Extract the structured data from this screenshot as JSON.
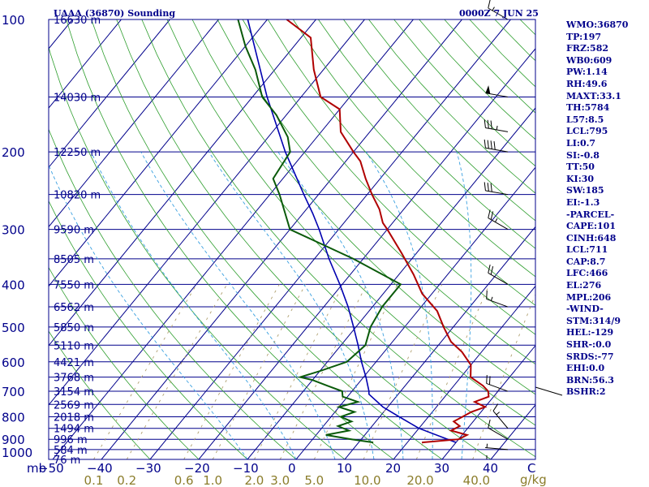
{
  "header": {
    "station": "UAAA (36870) Sounding",
    "time": "0000Z  7 JUN 25"
  },
  "axis": {
    "mb_label": "mb",
    "mixing_unit": "g/kg"
  },
  "stats": [
    "WMO:36870",
    "TP:197",
    "FRZ:582",
    "WB0:609",
    "PW:1.14",
    "RH:49.6",
    "MAXT:33.1",
    "TH:5784",
    "L57:8.5",
    "LCL:795",
    "LI:0.7",
    "SI:-0.8",
    "TT:50",
    "KI:30",
    "SW:185",
    "EI:-1.3",
    "-PARCEL-",
    "CAPE:101",
    "CINH:648",
    "LCL:711",
    "CAP:8.7",
    "LFC:466",
    "EL:276",
    "MPL:206",
    "-WIND-",
    "STM:314/9",
    "HEL:-129",
    "SHR-:0.0",
    "SRDS:-77",
    "EHI:0.0",
    "BRN:56.3",
    "BSHR:2"
  ],
  "colors": {
    "isobar": "#00008b",
    "isotherm": "#00008b",
    "dry_adiabat": "#2e9e2e",
    "moist_adiabat": "#3aa0e0",
    "mixing_ratio": "#b0a070",
    "temperature": "#b00000",
    "dewpoint": "#0a5a0a",
    "parcel": "#0000b0",
    "wind_barb": "#000000"
  },
  "chart_data": {
    "type": "skew-t",
    "pressure_ticks": [
      100,
      200,
      300,
      400,
      500,
      600,
      700,
      800,
      900,
      1000
    ],
    "temperature_ticks": [
      -50,
      -40,
      -30,
      -20,
      -10,
      0,
      10,
      20,
      30,
      40,
      "C"
    ],
    "mixing_ratio_ticks": [
      "0.1",
      "0.2",
      "0.6",
      "1.0",
      "2.0",
      "3.0",
      "5.0",
      "10.0",
      "20.0",
      "40.0"
    ],
    "height_labels": [
      {
        "p": 100,
        "label": "16630 m"
      },
      {
        "p": 150,
        "label": "14030 m"
      },
      {
        "p": 200,
        "label": "12250 m"
      },
      {
        "p": 250,
        "label": "10820 m"
      },
      {
        "p": 300,
        "label": "9590 m"
      },
      {
        "p": 350,
        "label": "8505 m"
      },
      {
        "p": 400,
        "label": "7550 m"
      },
      {
        "p": 450,
        "label": "6562 m"
      },
      {
        "p": 500,
        "label": "5850 m"
      },
      {
        "p": 550,
        "label": "5110 m"
      },
      {
        "p": 600,
        "label": "4421 m"
      },
      {
        "p": 650,
        "label": "3768 m"
      },
      {
        "p": 700,
        "label": "3154 m"
      },
      {
        "p": 750,
        "label": "2569 m"
      },
      {
        "p": 800,
        "label": "2018 m"
      },
      {
        "p": 850,
        "label": "1494 m"
      },
      {
        "p": 900,
        "label": "996 m"
      },
      {
        "p": 950,
        "label": "584 m"
      },
      {
        "p": 1000,
        "label": "76 m"
      }
    ],
    "temperature_profile": [
      [
        915,
        23
      ],
      [
        900,
        30
      ],
      [
        880,
        31
      ],
      [
        860,
        27
      ],
      [
        840,
        28
      ],
      [
        820,
        26
      ],
      [
        800,
        27
      ],
      [
        780,
        28
      ],
      [
        760,
        30
      ],
      [
        740,
        27
      ],
      [
        720,
        29
      ],
      [
        700,
        28
      ],
      [
        680,
        26
      ],
      [
        650,
        22
      ],
      [
        610,
        20
      ],
      [
        570,
        16
      ],
      [
        540,
        12
      ],
      [
        500,
        8
      ],
      [
        460,
        4
      ],
      [
        420,
        -2
      ],
      [
        380,
        -7
      ],
      [
        340,
        -13
      ],
      [
        300,
        -20
      ],
      [
        290,
        -22
      ],
      [
        270,
        -25
      ],
      [
        250,
        -29
      ],
      [
        230,
        -33
      ],
      [
        210,
        -37
      ],
      [
        200,
        -40
      ],
      [
        180,
        -46
      ],
      [
        160,
        -50
      ],
      [
        150,
        -56
      ],
      [
        130,
        -62
      ],
      [
        110,
        -68
      ],
      [
        100,
        -76
      ]
    ],
    "dewpoint_profile": [
      [
        915,
        13
      ],
      [
        900,
        8
      ],
      [
        880,
        2
      ],
      [
        860,
        6
      ],
      [
        840,
        3
      ],
      [
        820,
        5
      ],
      [
        800,
        2
      ],
      [
        780,
        4
      ],
      [
        760,
        0
      ],
      [
        740,
        3
      ],
      [
        720,
        -1
      ],
      [
        700,
        -2
      ],
      [
        680,
        -6
      ],
      [
        660,
        -10
      ],
      [
        650,
        -13
      ],
      [
        630,
        -10
      ],
      [
        600,
        -6
      ],
      [
        550,
        -5
      ],
      [
        500,
        -7
      ],
      [
        450,
        -8
      ],
      [
        400,
        -8
      ],
      [
        350,
        -22
      ],
      [
        300,
        -40
      ],
      [
        250,
        -48
      ],
      [
        230,
        -52
      ],
      [
        200,
        -53
      ],
      [
        185,
        -56
      ],
      [
        165,
        -62
      ],
      [
        150,
        -68
      ],
      [
        130,
        -74
      ],
      [
        115,
        -80
      ],
      [
        100,
        -86
      ]
    ],
    "parcel_profile": [
      [
        915,
        30
      ],
      [
        850,
        20
      ],
      [
        800,
        14
      ],
      [
        760,
        9
      ],
      [
        711,
        4
      ],
      [
        700,
        3.5
      ],
      [
        650,
        0.5
      ],
      [
        600,
        -3
      ],
      [
        550,
        -6.5
      ],
      [
        500,
        -10.5
      ],
      [
        450,
        -15
      ],
      [
        400,
        -20.5
      ],
      [
        350,
        -27
      ],
      [
        300,
        -34
      ],
      [
        276,
        -38
      ],
      [
        250,
        -43
      ],
      [
        200,
        -54
      ],
      [
        150,
        -67
      ],
      [
        100,
        -84
      ]
    ],
    "wind_barbs": [
      {
        "p": 1000,
        "dir": 270,
        "kt": 5
      },
      {
        "p": 950,
        "dir": 275,
        "kt": 5
      },
      {
        "p": 900,
        "dir": 300,
        "kt": 10
      },
      {
        "p": 850,
        "dir": 320,
        "kt": 15
      },
      {
        "p": 700,
        "dir": 290,
        "kt": 20
      },
      {
        "p": 450,
        "dir": 290,
        "kt": 15
      },
      {
        "p": 400,
        "dir": 300,
        "kt": 20
      },
      {
        "p": 300,
        "dir": 300,
        "kt": 25
      },
      {
        "p": 250,
        "dir": 280,
        "kt": 30
      },
      {
        "p": 200,
        "dir": 280,
        "kt": 40
      },
      {
        "p": 180,
        "dir": 280,
        "kt": 35
      },
      {
        "p": 150,
        "dir": 280,
        "kt": 50
      },
      {
        "p": 100,
        "dir": 300,
        "kt": 15
      }
    ]
  }
}
